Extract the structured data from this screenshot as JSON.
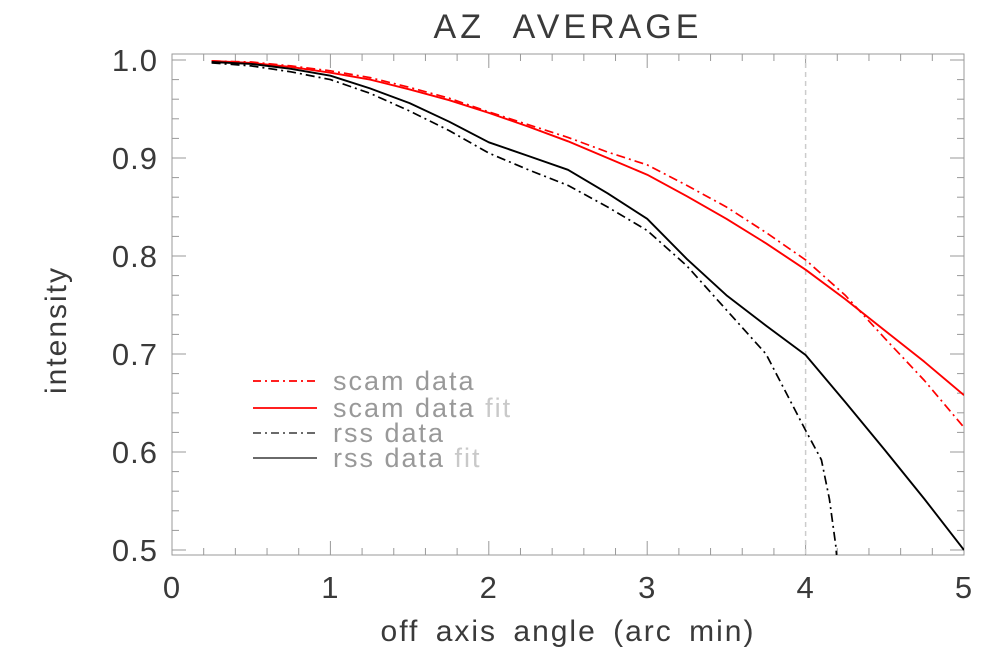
{
  "title": "AZ AVERAGE",
  "axes": {
    "xlabel": "off axis angle (arc min)",
    "ylabel": "intensity",
    "xlim": [
      0,
      5
    ],
    "ylim": [
      0.5,
      1.0
    ],
    "x_ticks": [
      0,
      1,
      2,
      3,
      4,
      5
    ],
    "x_tick_labels": [
      "0",
      "1",
      "2",
      "3",
      "4",
      "5"
    ],
    "y_ticks": [
      0.5,
      0.6,
      0.7,
      0.8,
      0.9,
      1.0
    ],
    "y_tick_labels": [
      "0.5",
      "0.6",
      "0.7",
      "0.8",
      "0.9",
      "1.0"
    ],
    "x_minor_step": 0.2,
    "y_minor_step": 0.02,
    "axis_color": "#999999",
    "label_color": "#3a3a3a"
  },
  "reference_line": {
    "x": 4,
    "color": "#cccccc",
    "style": "dashed"
  },
  "chart_data": {
    "type": "line",
    "title": "AZ AVERAGE",
    "xlabel": "off axis angle (arc min)",
    "ylabel": "intensity",
    "xlim": [
      0,
      5
    ],
    "ylim": [
      0.5,
      1.0
    ],
    "grid": false,
    "legend_position": "left-center-inside",
    "series": [
      {
        "name": "scam data",
        "color": "#ff0000",
        "style": "dashdot",
        "x": [
          0.25,
          0.5,
          0.75,
          1.0,
          1.25,
          1.5,
          1.75,
          2.0,
          2.25,
          2.5,
          2.75,
          3.0,
          3.25,
          3.5,
          3.75,
          4.0,
          4.25,
          4.5,
          4.75,
          5.0
        ],
        "y": [
          0.999,
          0.998,
          0.994,
          0.989,
          0.982,
          0.972,
          0.961,
          0.947,
          0.934,
          0.921,
          0.906,
          0.893,
          0.872,
          0.85,
          0.824,
          0.796,
          0.76,
          0.716,
          0.673,
          0.625
        ]
      },
      {
        "name": "scam data fit",
        "color": "#ff0000",
        "style": "solid",
        "x": [
          0.25,
          0.5,
          0.75,
          1.0,
          1.25,
          1.5,
          1.75,
          2.0,
          2.25,
          2.5,
          2.75,
          3.0,
          3.25,
          3.5,
          3.75,
          4.0,
          4.25,
          4.5,
          4.75,
          5.0
        ],
        "y": [
          0.999,
          0.997,
          0.993,
          0.987,
          0.98,
          0.97,
          0.959,
          0.946,
          0.932,
          0.917,
          0.9,
          0.883,
          0.861,
          0.838,
          0.813,
          0.786,
          0.756,
          0.724,
          0.692,
          0.658
        ]
      },
      {
        "name": "rss data",
        "color": "#000000",
        "style": "dashdot",
        "x": [
          0.25,
          0.5,
          0.75,
          1.0,
          1.25,
          1.5,
          1.75,
          2.0,
          2.25,
          2.5,
          2.75,
          3.0,
          3.25,
          3.5,
          3.75,
          4.0,
          4.1,
          4.15,
          4.19,
          4.21
        ],
        "y": [
          0.997,
          0.994,
          0.988,
          0.98,
          0.966,
          0.948,
          0.928,
          0.905,
          0.888,
          0.872,
          0.85,
          0.826,
          0.79,
          0.745,
          0.7,
          0.622,
          0.592,
          0.552,
          0.505,
          0.468
        ]
      },
      {
        "name": "rss data fit",
        "color": "#000000",
        "style": "solid",
        "x": [
          0.25,
          0.5,
          0.75,
          1.0,
          1.25,
          1.5,
          1.75,
          2.0,
          2.25,
          2.5,
          2.75,
          3.0,
          3.25,
          3.5,
          3.75,
          4.0,
          4.25,
          4.5,
          4.75,
          5.0
        ],
        "y": [
          0.998,
          0.996,
          0.991,
          0.984,
          0.971,
          0.956,
          0.937,
          0.916,
          0.902,
          0.888,
          0.864,
          0.838,
          0.797,
          0.76,
          0.729,
          0.699,
          0.651,
          0.602,
          0.552,
          0.5
        ]
      }
    ]
  },
  "legend": {
    "text_color": "#999999",
    "fit_text_color": "#c9c9c9",
    "items": [
      {
        "main": "scam data",
        "suffix": "",
        "color": "#ff0000",
        "style": "dashdot"
      },
      {
        "main": "scam data",
        "suffix": " fit",
        "color": "#ff0000",
        "style": "solid"
      },
      {
        "main": "rss data",
        "suffix": "",
        "color": "#555555",
        "style": "dashdot"
      },
      {
        "main": "rss data",
        "suffix": " fit",
        "color": "#555555",
        "style": "solid"
      }
    ]
  }
}
